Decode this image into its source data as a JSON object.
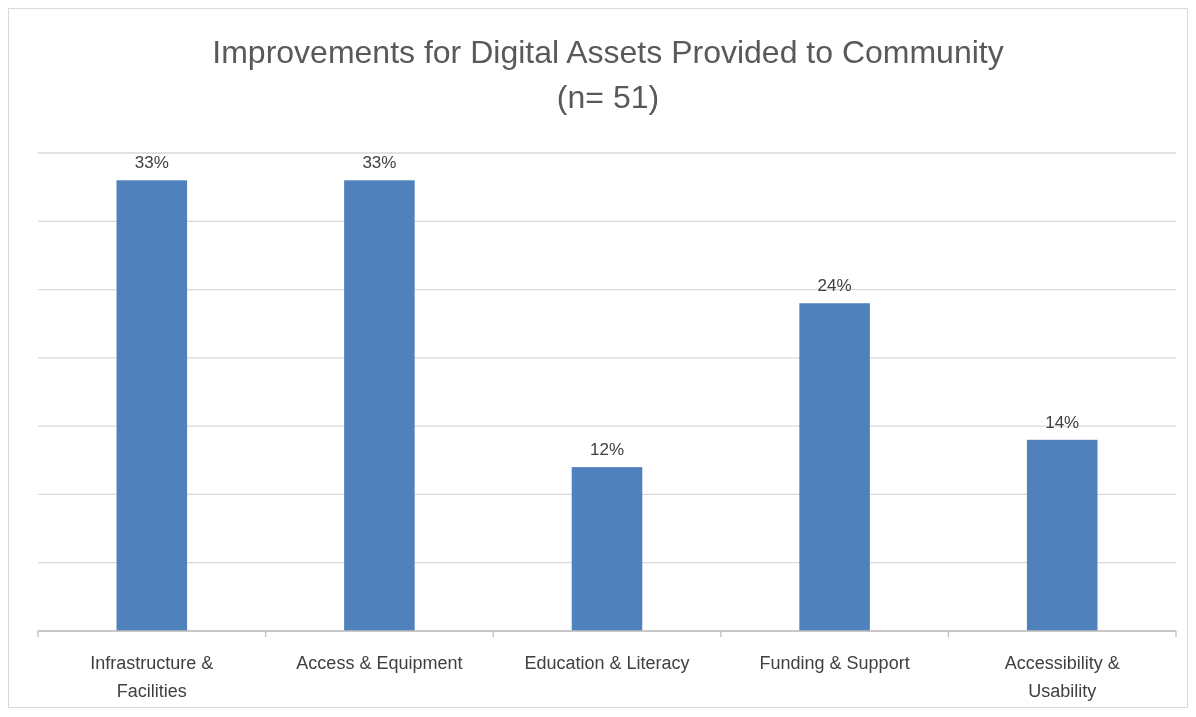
{
  "chart_data": {
    "type": "bar",
    "title": "Improvements for Digital Assets Provided to Community",
    "subtitle": "(n= 51)",
    "categories": [
      "Infrastructure & Facilities",
      "Access & Equipment",
      "Education & Literacy",
      "Funding & Support",
      "Accessibility & Usability"
    ],
    "values": [
      33,
      33,
      12,
      24,
      14
    ],
    "value_labels": [
      "33%",
      "33%",
      "12%",
      "24%",
      "14%"
    ],
    "color": "#4f81bd",
    "ylim": [
      0,
      35
    ],
    "yticks": [
      {
        "value": 0,
        "label": null
      },
      {
        "value": 5,
        "label": null
      },
      {
        "value": 10,
        "label": null
      },
      {
        "value": 15,
        "label": null
      },
      {
        "value": 20,
        "label": null
      },
      {
        "value": 25,
        "label": null
      },
      {
        "value": 30,
        "label": null
      },
      {
        "value": 35,
        "label": null
      }
    ],
    "tick_labels": "x",
    "grid": "y"
  }
}
